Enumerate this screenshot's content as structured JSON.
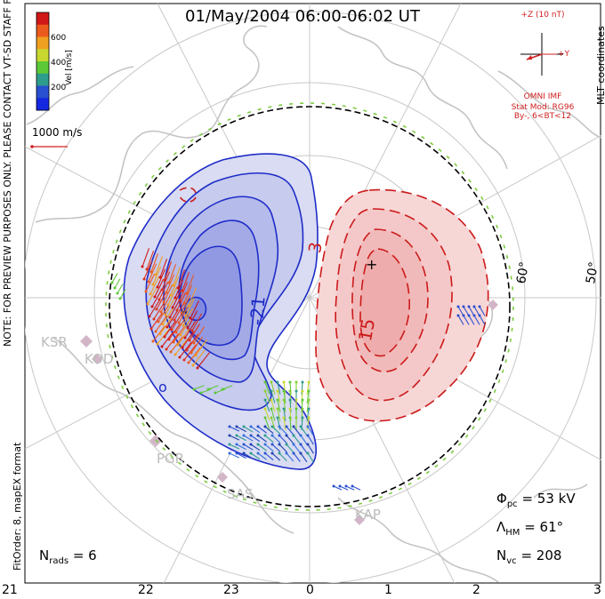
{
  "title": "01/May/2004 06:00-06:02 UT",
  "coord_label": "MLT coordinates",
  "vertical_notes": {
    "preview": "NOTE: FOR PREVIEW PURPOSES ONLY. PLEASE CONTACT VT-SD STAFF FOR VERIFICATION.",
    "fitorder": "FitOrder: 8, mapEX format"
  },
  "colorbar": {
    "title": "Vel [m/s]",
    "ticks": [
      "600",
      "400",
      "200"
    ],
    "colors": [
      "#d01818",
      "#ec5a1e",
      "#f0a020",
      "#c8d830",
      "#5cc838",
      "#2e9c8c",
      "#2850d0",
      "#1428e0"
    ]
  },
  "ref_vector": "1000 m/s",
  "imf": {
    "z_label": "+Z (10 nT)",
    "y_label": "+Y",
    "source": "OMNI IMF",
    "model": "Stat Mod: RG96",
    "condition": "By-, 6<BT<12"
  },
  "contours": {
    "neg_label": "-21",
    "pos_label_top": "3",
    "pos_label_mid": "15"
  },
  "latitude_labels": [
    "60°",
    "50°"
  ],
  "mlt_ticks": [
    "21",
    "22",
    "23",
    "0",
    "1",
    "2",
    "3"
  ],
  "stations": [
    "KSR",
    "KOD",
    "PGR",
    "SAS",
    "KAP"
  ],
  "stats": {
    "phi_pc_sym": "Φ",
    "phi_pc_sub": "pc",
    "phi_pc_val": "= 53 kV",
    "lambda_hm_sym": "Λ",
    "lambda_hm_sub": "HM",
    "lambda_hm_val": "= 61°",
    "n_vc_sym": "N",
    "n_vc_sub": "vc",
    "n_vc_val": "= 208",
    "n_rads_sym": "N",
    "n_rads_sub": "rads",
    "n_rads_val": "= 6"
  }
}
